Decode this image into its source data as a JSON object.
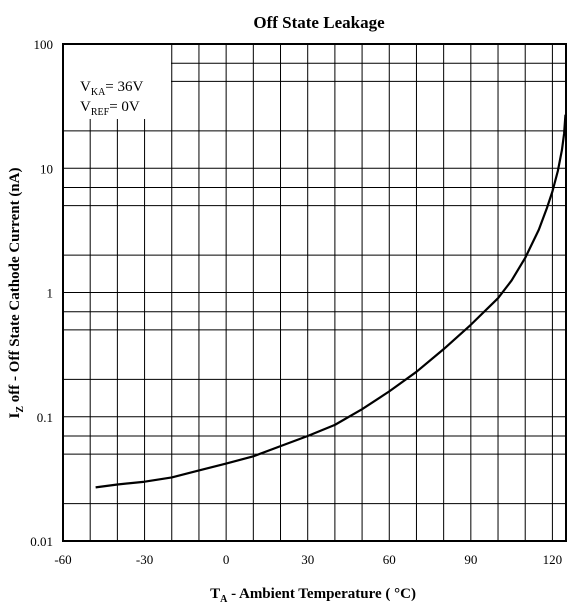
{
  "chart_data": {
    "type": "line",
    "title": "Off State Leakage",
    "xlabel": {
      "main": "T",
      "sub": "A",
      "rest": " - Ambient Temperature ( °C)"
    },
    "ylabel": {
      "main": "I",
      "sub": "Z",
      "rest": " off - Off State Cathode Current (nA)"
    },
    "xlim": [
      -60,
      125
    ],
    "ylim": [
      0.01,
      100
    ],
    "yscale": "log",
    "grid": true,
    "x_ticks": [
      "-60",
      "-30",
      "0",
      "30",
      "60",
      "90",
      "120"
    ],
    "y_ticks": [
      "0.01",
      "0.1",
      "1",
      "10",
      "100"
    ],
    "annotations": [
      {
        "main": "V",
        "sub": "KA",
        "rest": "= 36V"
      },
      {
        "main": "V",
        "sub": "REF",
        "rest": "= 0V"
      }
    ],
    "series": [
      {
        "x": [
          -48,
          -40,
          -30,
          -20,
          -10,
          0,
          10,
          20,
          30,
          40,
          50,
          60,
          70,
          80,
          90,
          100,
          105,
          110,
          115,
          118,
          120,
          122,
          123.5,
          124.3,
          124.8
        ],
        "y": [
          0.027,
          0.0285,
          0.03,
          0.0325,
          0.037,
          0.042,
          0.048,
          0.058,
          0.07,
          0.086,
          0.115,
          0.16,
          0.23,
          0.35,
          0.55,
          0.9,
          1.25,
          1.9,
          3.2,
          4.8,
          6.5,
          9.5,
          14.0,
          19.0,
          27.0
        ]
      }
    ]
  }
}
